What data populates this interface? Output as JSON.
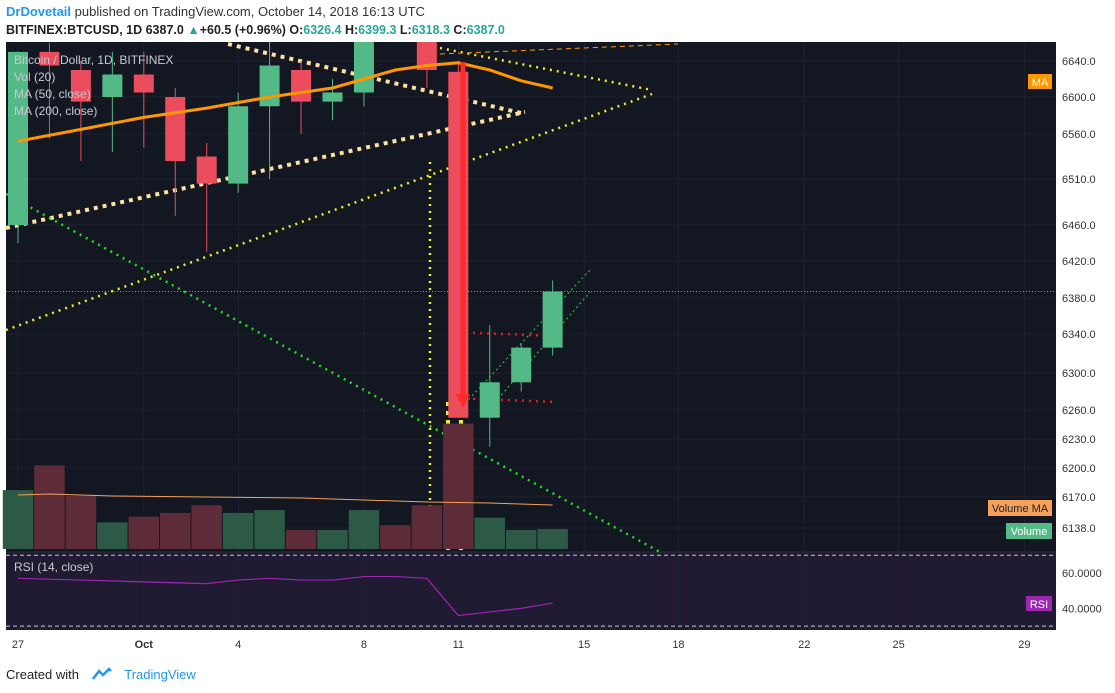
{
  "header": {
    "author": "DrDovetail",
    "published_text": "published on TradingView.com, October 14, 2018 16:13 UTC",
    "symbol": "BITFINEX:BTCUSD, 1D",
    "last": "6387.0",
    "change": "+60.5 (+0.96%)",
    "o_label": "O:",
    "o": "6326.4",
    "h_label": "H:",
    "h": "6399.3",
    "l_label": "L:",
    "l": "6318.3",
    "c_label": "C:",
    "c": "6387.0"
  },
  "legend": {
    "title": "Bitcoin / Dollar, 1D, BITFINEX",
    "vol": "Vol (20)",
    "ma50": "MA (50, close)",
    "ma200": "MA (200, close)",
    "rsi": "RSI (14, close)"
  },
  "badges": {
    "ma": "MA",
    "volume_ma": "Volume MA",
    "volume": "Volume",
    "rsi": "RSI"
  },
  "footer": {
    "created_with": "Created with",
    "brand": "TradingView"
  },
  "colors": {
    "up": "#53b987",
    "down": "#eb4d5c",
    "background": "#131722",
    "ma": "#ff9800",
    "rsi": "#9c27b0"
  },
  "chart_data": {
    "type": "candlestick",
    "title": "Bitcoin / Dollar, 1D, BITFINEX",
    "price_axis_ticks": [
      "6640.0",
      "6600.0",
      "6560.0",
      "6510.0",
      "6460.0",
      "6420.0",
      "6380.0",
      "6340.0",
      "6300.0",
      "6260.0",
      "6230.0",
      "6200.0",
      "6170.0",
      "6138.0"
    ],
    "rsi_axis_ticks": [
      "60.0000",
      "40.0000"
    ],
    "x_tick_labels": [
      "27",
      "Oct",
      "4",
      "8",
      "11",
      "15",
      "18",
      "22",
      "25",
      "29"
    ],
    "x_tick_days": [
      27,
      31,
      34,
      38,
      41,
      45,
      48,
      52,
      55,
      59
    ],
    "candles": [
      {
        "day": 27,
        "o": 6460,
        "h": 6650,
        "l": 6440,
        "c": 6650
      },
      {
        "day": 28,
        "o": 6650,
        "h": 6660,
        "l": 6555,
        "c": 6635
      },
      {
        "day": 29,
        "o": 6630,
        "h": 6640,
        "l": 6530,
        "c": 6595
      },
      {
        "day": 30,
        "o": 6600,
        "h": 6650,
        "l": 6540,
        "c": 6625
      },
      {
        "day": 31,
        "o": 6625,
        "h": 6650,
        "l": 6545,
        "c": 6605
      },
      {
        "day": 32,
        "o": 6600,
        "h": 6610,
        "l": 6470,
        "c": 6530
      },
      {
        "day": 33,
        "o": 6535,
        "h": 6550,
        "l": 6430,
        "c": 6505
      },
      {
        "day": 34,
        "o": 6505,
        "h": 6605,
        "l": 6495,
        "c": 6590
      },
      {
        "day": 35,
        "o": 6590,
        "h": 6665,
        "l": 6510,
        "c": 6635
      },
      {
        "day": 36,
        "o": 6630,
        "h": 6640,
        "l": 6560,
        "c": 6595
      },
      {
        "day": 37,
        "o": 6595,
        "h": 6620,
        "l": 6575,
        "c": 6605
      },
      {
        "day": 38,
        "o": 6605,
        "h": 6680,
        "l": 6590,
        "c": 6665
      },
      {
        "day": 40,
        "o": 6665,
        "h": 6670,
        "l": 6610,
        "c": 6630
      },
      {
        "day": 41,
        "o": 6628,
        "h": 6640,
        "l": 6252,
        "c": 6252
      },
      {
        "day": 42,
        "o": 6252,
        "h": 6350,
        "l": 6222,
        "c": 6290
      },
      {
        "day": 43,
        "o": 6290,
        "h": 6330,
        "l": 6280,
        "c": 6326
      },
      {
        "day": 44,
        "o": 6326,
        "h": 6399,
        "l": 6318,
        "c": 6387
      }
    ],
    "volume": [
      {
        "day": 27,
        "v": 62,
        "up": true
      },
      {
        "day": 28,
        "v": 88,
        "up": false
      },
      {
        "day": 29,
        "v": 56,
        "up": false
      },
      {
        "day": 30,
        "v": 28,
        "up": true
      },
      {
        "day": 31,
        "v": 34,
        "up": false
      },
      {
        "day": 32,
        "v": 38,
        "up": false
      },
      {
        "day": 33,
        "v": 46,
        "up": false
      },
      {
        "day": 34,
        "v": 38,
        "up": true
      },
      {
        "day": 35,
        "v": 41,
        "up": true
      },
      {
        "day": 36,
        "v": 20,
        "up": false
      },
      {
        "day": 37,
        "v": 20,
        "up": true
      },
      {
        "day": 38,
        "v": 41,
        "up": true
      },
      {
        "day": 39,
        "v": 25,
        "up": false
      },
      {
        "day": 40,
        "v": 46,
        "up": false
      },
      {
        "day": 41,
        "v": 132,
        "up": false
      },
      {
        "day": 42,
        "v": 33,
        "up": true
      },
      {
        "day": 43,
        "v": 20,
        "up": true
      },
      {
        "day": 44,
        "v": 21,
        "up": true
      }
    ],
    "ma": [
      [
        27,
        6552
      ],
      [
        29,
        6565
      ],
      [
        31,
        6578
      ],
      [
        33,
        6588
      ],
      [
        35,
        6600
      ],
      [
        37,
        6610
      ],
      [
        38,
        6620
      ],
      [
        39,
        6630
      ],
      [
        40,
        6635
      ],
      [
        41,
        6638
      ],
      [
        42,
        6630
      ],
      [
        43,
        6618
      ],
      [
        44,
        6610
      ]
    ],
    "rsi": [
      [
        27,
        57
      ],
      [
        29,
        56
      ],
      [
        31,
        55
      ],
      [
        33,
        54
      ],
      [
        34,
        56
      ],
      [
        35,
        57
      ],
      [
        36,
        56
      ],
      [
        37,
        56
      ],
      [
        38,
        58
      ],
      [
        39,
        58
      ],
      [
        40,
        57
      ],
      [
        41,
        36
      ],
      [
        42,
        38
      ],
      [
        43,
        40
      ],
      [
        44,
        43
      ]
    ]
  }
}
